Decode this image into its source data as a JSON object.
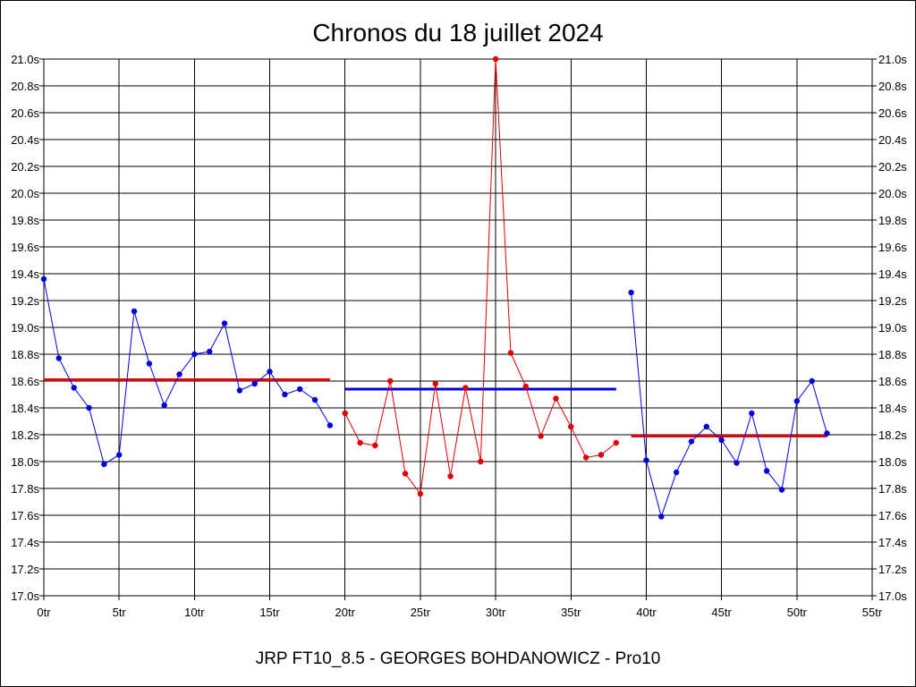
{
  "chart_data": {
    "type": "line",
    "title": "Chronos du 18 juillet 2024",
    "xlabel": "JRP FT10_8.5 - GEORGES BOHDANOWICZ - Pro10",
    "ylabel": "",
    "xlim": [
      0,
      55
    ],
    "ylim": [
      17.0,
      21.0
    ],
    "grid": true,
    "x_ticks": [
      0,
      5,
      10,
      15,
      20,
      25,
      30,
      35,
      40,
      45,
      50,
      55
    ],
    "x_tick_labels": [
      "0tr",
      "5tr",
      "10tr",
      "15tr",
      "20tr",
      "25tr",
      "30tr",
      "35tr",
      "40tr",
      "45tr",
      "50tr",
      "55tr"
    ],
    "y_ticks": [
      17.0,
      17.2,
      17.4,
      17.6,
      17.8,
      18.0,
      18.2,
      18.4,
      18.6,
      18.8,
      19.0,
      19.2,
      19.4,
      19.6,
      19.8,
      20.0,
      20.2,
      20.4,
      20.6,
      20.8,
      21.0
    ],
    "y_tick_labels": [
      "17.0s",
      "17.2s",
      "17.4s",
      "17.6s",
      "17.8s",
      "18.0s",
      "18.2s",
      "18.4s",
      "18.6s",
      "18.8s",
      "19.0s",
      "19.2s",
      "19.4s",
      "19.6s",
      "19.8s",
      "20.0s",
      "20.2s",
      "20.4s",
      "20.6s",
      "20.8s",
      "21.0s"
    ],
    "series": [
      {
        "color": "#0000e0",
        "x": [
          0,
          1,
          2,
          3,
          4,
          5,
          6,
          7,
          8,
          9,
          10,
          11,
          12,
          13,
          14,
          15,
          16,
          17,
          18,
          19
        ],
        "values": [
          19.36,
          18.77,
          18.55,
          18.4,
          17.98,
          18.05,
          19.12,
          18.73,
          18.42,
          18.65,
          18.8,
          18.82,
          19.03,
          18.53,
          18.58,
          18.67,
          18.5,
          18.54,
          18.46,
          18.27
        ]
      },
      {
        "color": "#e00000",
        "x": [
          20,
          21,
          22,
          23,
          24,
          25,
          26,
          27,
          28,
          29,
          30,
          31,
          32,
          33,
          34,
          35,
          36,
          37,
          38
        ],
        "values": [
          18.36,
          18.14,
          18.12,
          18.6,
          17.91,
          17.76,
          18.58,
          17.89,
          18.55,
          18.0,
          21.0,
          18.81,
          18.56,
          18.19,
          18.47,
          18.26,
          18.03,
          18.05,
          18.14
        ]
      },
      {
        "color": "#0000e0",
        "x": [
          39,
          40,
          41,
          42,
          43,
          44,
          45,
          46,
          47,
          48,
          49,
          50,
          51,
          52
        ],
        "values": [
          19.26,
          18.01,
          17.59,
          17.92,
          18.15,
          18.26,
          18.16,
          17.99,
          18.36,
          17.93,
          17.79,
          18.45,
          18.6,
          18.21
        ]
      }
    ],
    "average_lines": [
      {
        "color": "#e00000",
        "x_start": 0,
        "x_end": 19,
        "value": 18.61
      },
      {
        "color": "#0000e0",
        "x_start": 20,
        "x_end": 38,
        "value": 18.54
      },
      {
        "color": "#e00000",
        "x_start": 39,
        "x_end": 52,
        "value": 18.19
      }
    ]
  }
}
